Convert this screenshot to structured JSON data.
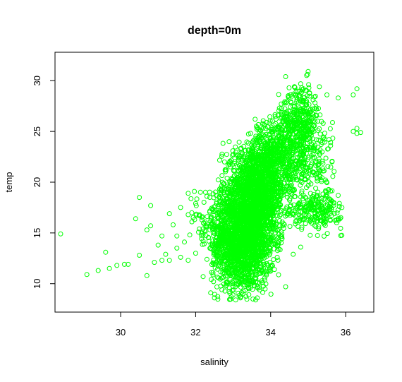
{
  "chart_data": {
    "type": "scatter",
    "title": "depth=0m",
    "xlabel": "salinity",
    "ylabel": "temp",
    "xlim": [
      28.25,
      36.75
    ],
    "ylim": [
      7.2,
      32.8
    ],
    "x_ticks": [
      30,
      32,
      34,
      36
    ],
    "y_ticks": [
      10,
      15,
      20,
      25,
      30
    ],
    "x_tick_labels": [
      "30",
      "32",
      "34",
      "36"
    ],
    "y_tick_labels": [
      "10",
      "15",
      "20",
      "25",
      "30"
    ],
    "point_color": "#00ff00",
    "marker": "open-circle",
    "grid": false,
    "legend": "none",
    "series": [
      {
        "points": [
          [
            28.4,
            14.9
          ],
          [
            29.1,
            10.9
          ],
          [
            29.4,
            11.3
          ],
          [
            29.6,
            13.1
          ],
          [
            29.7,
            11.5
          ],
          [
            29.9,
            11.8
          ],
          [
            30.1,
            11.9
          ],
          [
            30.2,
            11.9
          ],
          [
            30.4,
            16.4
          ],
          [
            30.5,
            18.5
          ],
          [
            30.5,
            12.8
          ],
          [
            30.7,
            10.8
          ],
          [
            30.7,
            15.3
          ],
          [
            30.8,
            17.7
          ],
          [
            30.8,
            15.7
          ],
          [
            30.9,
            12.1
          ],
          [
            31.0,
            13.8
          ],
          [
            31.1,
            14.7
          ],
          [
            31.1,
            12.3
          ],
          [
            31.2,
            12.9
          ],
          [
            31.3,
            12.3
          ],
          [
            31.3,
            16.9
          ],
          [
            31.4,
            15.8
          ],
          [
            31.5,
            14.7
          ],
          [
            31.5,
            13.5
          ],
          [
            31.6,
            12.6
          ],
          [
            31.6,
            17.5
          ],
          [
            31.7,
            14.1
          ],
          [
            31.8,
            12.3
          ],
          [
            31.8,
            16.8
          ],
          [
            31.8,
            18.9
          ],
          [
            31.9,
            16.1
          ],
          [
            32.0,
            13.0
          ],
          [
            32.0,
            17.9
          ],
          [
            32.1,
            15.4
          ],
          [
            32.1,
            16.8
          ],
          [
            32.2,
            14.2
          ],
          [
            32.2,
            10.7
          ],
          [
            32.3,
            12.4
          ],
          [
            32.3,
            18.6
          ],
          [
            32.4,
            16.2
          ],
          [
            32.4,
            9.1
          ],
          [
            32.5,
            11.9
          ],
          [
            32.5,
            8.6
          ],
          [
            32.6,
            17.6
          ],
          [
            32.6,
            13.4
          ],
          [
            32.7,
            9.4
          ],
          [
            32.7,
            19.2
          ],
          [
            34.4,
            30.4
          ],
          [
            34.8,
            29.7
          ],
          [
            35.0,
            30.9
          ],
          [
            35.3,
            29.4
          ],
          [
            35.5,
            28.6
          ],
          [
            35.4,
            25.8
          ],
          [
            35.6,
            23.9
          ],
          [
            35.6,
            23.6
          ],
          [
            35.8,
            28.3
          ],
          [
            35.8,
            18.7
          ],
          [
            35.7,
            16.9
          ],
          [
            35.9,
            17.5
          ],
          [
            36.2,
            28.6
          ],
          [
            36.2,
            25.0
          ],
          [
            36.3,
            24.8
          ],
          [
            36.3,
            25.3
          ],
          [
            36.4,
            24.9
          ],
          [
            36.3,
            29.2
          ],
          [
            34.5,
            17.3
          ],
          [
            34.3,
            14.9
          ],
          [
            34.1,
            11.4
          ],
          [
            34.4,
            9.7
          ],
          [
            34.6,
            12.9
          ],
          [
            33.6,
            8.4
          ],
          [
            33.2,
            8.7
          ],
          [
            34.8,
            13.6
          ],
          [
            35.1,
            21.9
          ],
          [
            35.2,
            19.4
          ],
          [
            35.4,
            21.1
          ],
          [
            35.0,
            16.6
          ],
          [
            34.9,
            26.9
          ],
          [
            34.7,
            28.1
          ]
        ],
        "clusters": [
          {
            "n": 1500,
            "center": [
              33.25,
              13.8
            ],
            "spread": [
              0.42,
              2.3
            ],
            "xrange": [
              32.4,
              34.3
            ],
            "yrange": [
              8.3,
              18.0
            ]
          },
          {
            "n": 1700,
            "center": [
              33.55,
              18.5
            ],
            "spread": [
              0.42,
              2.3
            ],
            "xrange": [
              32.6,
              34.6
            ],
            "yrange": [
              13.0,
              24.0
            ]
          },
          {
            "n": 600,
            "center": [
              34.1,
              22.5
            ],
            "spread": [
              0.4,
              1.9
            ],
            "xrange": [
              33.4,
              35.0
            ],
            "yrange": [
              18.0,
              27.0
            ]
          },
          {
            "n": 350,
            "center": [
              34.75,
              26.0
            ],
            "spread": [
              0.3,
              1.8
            ],
            "xrange": [
              34.2,
              35.4
            ],
            "yrange": [
              21.0,
              31.0
            ]
          },
          {
            "n": 220,
            "center": [
              35.2,
              17.2
            ],
            "spread": [
              0.35,
              0.9
            ],
            "xrange": [
              34.5,
              35.9
            ],
            "yrange": [
              14.5,
              19.5
            ]
          },
          {
            "n": 180,
            "center": [
              35.05,
              22.5
            ],
            "spread": [
              0.35,
              2.5
            ],
            "xrange": [
              34.5,
              35.7
            ],
            "yrange": [
              17.0,
              28.0
            ]
          },
          {
            "n": 160,
            "center": [
              32.6,
              16.0
            ],
            "spread": [
              0.35,
              2.0
            ],
            "xrange": [
              31.8,
              33.2
            ],
            "yrange": [
              11.0,
              19.5
            ]
          }
        ]
      }
    ]
  }
}
